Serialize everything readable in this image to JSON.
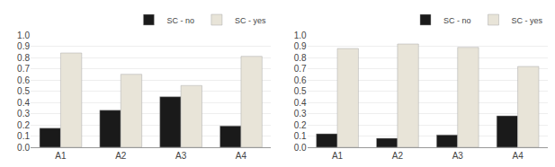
{
  "chart_data": [
    {
      "type": "bar",
      "categories": [
        "A1",
        "A2",
        "A3",
        "A4"
      ],
      "series": [
        {
          "name": "SC - no",
          "color": "#1a1a1a",
          "values": [
            0.17,
            0.33,
            0.45,
            0.19
          ]
        },
        {
          "name": "SC - yes",
          "color": "#e8e4d8",
          "values": [
            0.84,
            0.65,
            0.55,
            0.81
          ]
        }
      ],
      "ylim": [
        0,
        1
      ],
      "yticks": [
        {
          "value": 0,
          "label": "0.0"
        },
        0.1,
        0.2,
        0.3,
        0.4,
        0.5,
        0.6,
        0.7,
        0.8,
        0.9,
        {
          "value": 1,
          "label": "1.0"
        }
      ],
      "grid": true,
      "legend": "upper right"
    },
    {
      "type": "bar",
      "categories": [
        "A1",
        "A2",
        "A3",
        "A4"
      ],
      "series": [
        {
          "name": "SC - no",
          "color": "#1a1a1a",
          "values": [
            0.12,
            0.08,
            0.11,
            0.28
          ]
        },
        {
          "name": "SC - yes",
          "color": "#e8e4d8",
          "values": [
            0.88,
            0.92,
            0.89,
            0.72
          ]
        }
      ],
      "ylim": [
        0,
        1
      ],
      "yticks": [
        {
          "value": 0,
          "label": "0.0"
        },
        0.1,
        0.2,
        0.3,
        0.4,
        0.5,
        0.6,
        0.7,
        0.8,
        0.9,
        {
          "value": 1,
          "label": "1.0"
        }
      ],
      "grid": true,
      "legend": "upper right"
    }
  ]
}
